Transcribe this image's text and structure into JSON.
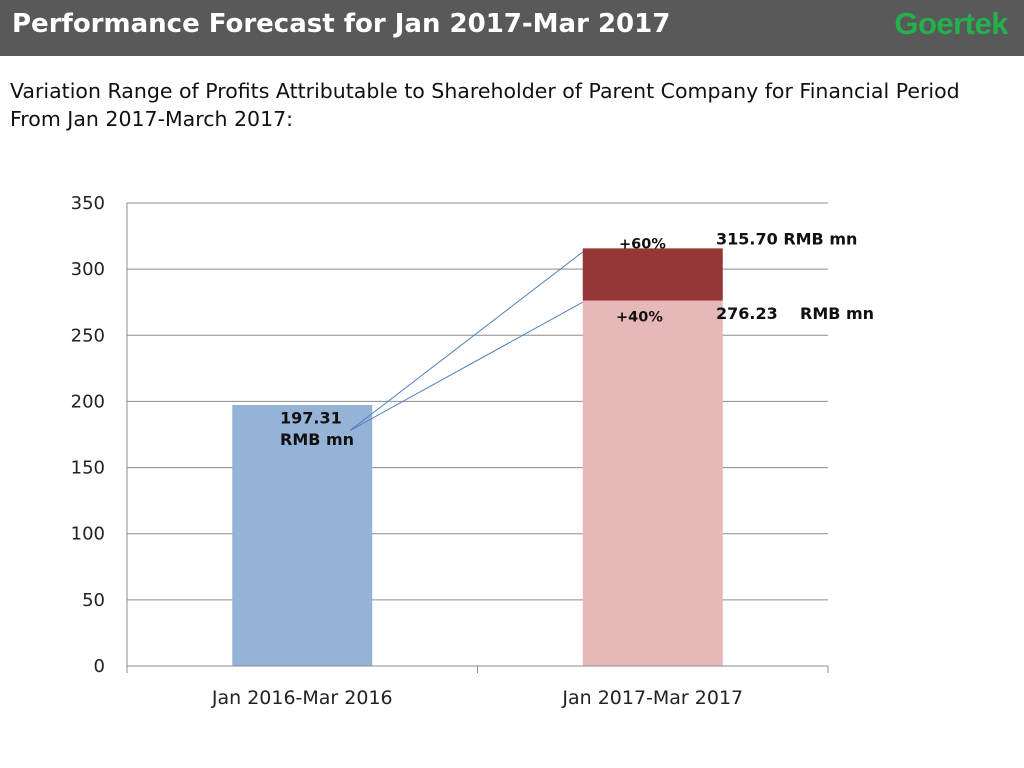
{
  "header": {
    "title": "Performance Forecast for Jan 2017-Mar 2017",
    "logo_text": "Goertek",
    "background": "#595959",
    "logo_color": "#22b14c"
  },
  "subtitle": "Variation Range of Profits Attributable to Shareholder of Parent Company for Financial Period From Jan 2017-March 2017:",
  "chart_data": {
    "type": "bar",
    "categories": [
      "Jan 2016-Mar 2016",
      "Jan 2017-Mar 2017"
    ],
    "ylim": [
      0,
      350
    ],
    "yticks": [
      0,
      50,
      100,
      150,
      200,
      250,
      300,
      350
    ],
    "grid": true,
    "bars": [
      {
        "category": "Jan 2016-Mar 2016",
        "value": 197.31,
        "color": "#95b3d7"
      },
      {
        "category": "Jan 2017-Mar 2017",
        "value": 276.23,
        "color": "#e6b9b8"
      },
      {
        "category": "Jan 2017-Mar 2017",
        "base": 276.23,
        "value": 315.7,
        "color": "#953735"
      }
    ],
    "annotations": {
      "base_value_line1": "197.31",
      "base_value_line2": "RMB mn",
      "pct_high": "+60%",
      "pct_low": "+40%",
      "high_value": "315.70 RMB mn",
      "low_value": "276.23",
      "low_unit": "RMB mn"
    }
  }
}
